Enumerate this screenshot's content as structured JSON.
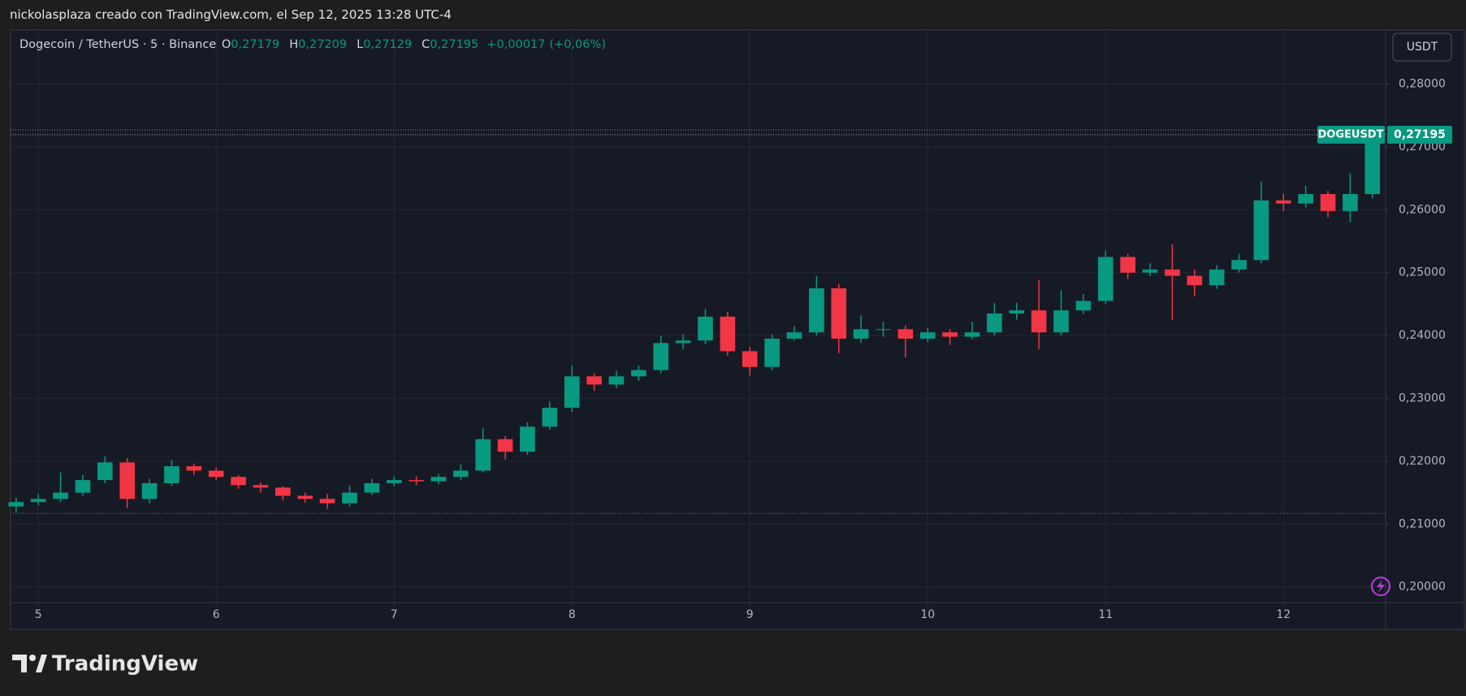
{
  "header": "nickolasplaza creado con TradingView.com, el Sep 12, 2025 13:28 UTC-4",
  "footer_brand": "TradingView",
  "chart_data": {
    "type": "candlestick",
    "title": "Dogecoin / TetherUS · 5 · Binance",
    "legend": {
      "keys": [
        "O",
        "H",
        "L",
        "C"
      ],
      "open": {
        "value": 0.27179,
        "label": "0,27179"
      },
      "high": {
        "value": 0.27209,
        "label": "0,27209"
      },
      "low": {
        "value": 0.27129,
        "label": "0,27129"
      },
      "close": {
        "value": 0.27195,
        "label": "0,27195"
      },
      "change": {
        "value": 0.00017,
        "label": "+0,00017"
      },
      "change_pct": {
        "value": 0.06,
        "label": "(+0,06%)"
      }
    },
    "currency": "USDT",
    "symbol": "DOGEUSDT",
    "last_price": {
      "value": 0.27195,
      "label": "0,27195"
    },
    "range_lines": [
      0.2727,
      0.2117
    ],
    "up_color": "#089981",
    "down_color": "#f23645",
    "x": [
      4.875,
      5.0,
      5.125,
      5.25,
      5.375,
      5.5,
      5.625,
      5.75,
      5.875,
      6.0,
      6.125,
      6.25,
      6.375,
      6.5,
      6.625,
      6.75,
      6.875,
      7.0,
      7.125,
      7.25,
      7.375,
      7.5,
      7.625,
      7.75,
      7.875,
      8.0,
      8.125,
      8.25,
      8.375,
      8.5,
      8.625,
      8.75,
      8.875,
      9.0,
      9.125,
      9.25,
      9.375,
      9.5,
      9.625,
      9.75,
      9.875,
      10.0,
      10.125,
      10.25,
      10.375,
      10.5,
      10.625,
      10.75,
      10.875,
      11.0,
      11.125,
      11.25,
      11.375,
      11.5,
      11.625,
      11.75,
      11.875,
      12.0,
      12.125,
      12.25,
      12.375,
      12.5
    ],
    "open": [
      0.2128,
      0.2135,
      0.214,
      0.215,
      0.217,
      0.2198,
      0.214,
      0.2165,
      0.2192,
      0.2185,
      0.2175,
      0.2162,
      0.2158,
      0.2145,
      0.214,
      0.2133,
      0.215,
      0.2165,
      0.217,
      0.2168,
      0.2175,
      0.2185,
      0.2235,
      0.2215,
      0.2255,
      0.2285,
      0.2335,
      0.2322,
      0.2335,
      0.2345,
      0.2388,
      0.2392,
      0.243,
      0.2375,
      0.235,
      0.2395,
      0.2405,
      0.2475,
      0.2395,
      0.241,
      0.241,
      0.2395,
      0.2405,
      0.2398,
      0.2405,
      0.2435,
      0.244,
      0.2405,
      0.244,
      0.2455,
      0.2525,
      0.25,
      0.2505,
      0.2495,
      0.248,
      0.2505,
      0.252,
      0.2615,
      0.261,
      0.2625,
      0.2598,
      0.2625
    ],
    "high": [
      0.2142,
      0.2148,
      0.2182,
      0.2178,
      0.2208,
      0.2205,
      0.2172,
      0.2202,
      0.2196,
      0.219,
      0.2178,
      0.2166,
      0.216,
      0.215,
      0.2148,
      0.2162,
      0.2172,
      0.2176,
      0.2176,
      0.218,
      0.2195,
      0.2252,
      0.224,
      0.2262,
      0.2295,
      0.2352,
      0.234,
      0.2344,
      0.2352,
      0.24,
      0.2402,
      0.2442,
      0.2438,
      0.2382,
      0.2402,
      0.2415,
      0.2495,
      0.2482,
      0.2432,
      0.2422,
      0.2416,
      0.2412,
      0.241,
      0.2422,
      0.2452,
      0.2452,
      0.2488,
      0.2472,
      0.2466,
      0.2535,
      0.253,
      0.2515,
      0.2545,
      0.2505,
      0.2512,
      0.253,
      0.2645,
      0.2625,
      0.2638,
      0.263,
      0.2658,
      0.27209
    ],
    "low": [
      0.2118,
      0.213,
      0.2135,
      0.2145,
      0.2165,
      0.2125,
      0.2133,
      0.216,
      0.2178,
      0.217,
      0.2156,
      0.215,
      0.2138,
      0.2134,
      0.2124,
      0.2128,
      0.2146,
      0.216,
      0.2162,
      0.2163,
      0.217,
      0.2182,
      0.2203,
      0.221,
      0.225,
      0.2278,
      0.2312,
      0.2316,
      0.2328,
      0.234,
      0.2378,
      0.2386,
      0.2368,
      0.2336,
      0.2345,
      0.2392,
      0.24,
      0.2372,
      0.2388,
      0.2398,
      0.2365,
      0.239,
      0.2385,
      0.2394,
      0.24,
      0.2425,
      0.2378,
      0.24,
      0.2434,
      0.245,
      0.249,
      0.2494,
      0.2425,
      0.2462,
      0.2474,
      0.25,
      0.2515,
      0.2598,
      0.2604,
      0.2588,
      0.258,
      0.2618
    ],
    "close": [
      0.2135,
      0.214,
      0.215,
      0.217,
      0.2198,
      0.214,
      0.2165,
      0.2192,
      0.2185,
      0.2175,
      0.2162,
      0.2158,
      0.2145,
      0.214,
      0.2133,
      0.215,
      0.2165,
      0.217,
      0.2168,
      0.2175,
      0.2185,
      0.2235,
      0.2215,
      0.2255,
      0.2285,
      0.2335,
      0.2322,
      0.2335,
      0.2345,
      0.2388,
      0.2392,
      0.243,
      0.2375,
      0.235,
      0.2395,
      0.2405,
      0.2475,
      0.2395,
      0.241,
      0.241,
      0.2395,
      0.2405,
      0.2398,
      0.2405,
      0.2435,
      0.244,
      0.2405,
      0.244,
      0.2455,
      0.2525,
      0.25,
      0.2505,
      0.2495,
      0.248,
      0.2505,
      0.252,
      0.2615,
      0.261,
      0.2625,
      0.2598,
      0.2625,
      0.27195
    ],
    "xlim": [
      4.844,
      12.574
    ],
    "xticks": [
      5,
      6,
      7,
      8,
      9,
      10,
      11,
      12
    ],
    "ylim": [
      0.1975,
      0.2886
    ],
    "yticks": [
      {
        "value": 0.2,
        "label": "0,20000"
      },
      {
        "value": 0.21,
        "label": "0,21000"
      },
      {
        "value": 0.22,
        "label": "0,22000"
      },
      {
        "value": 0.23,
        "label": "0,23000"
      },
      {
        "value": 0.24,
        "label": "0,24000"
      },
      {
        "value": 0.25,
        "label": "0,25000"
      },
      {
        "value": 0.26,
        "label": "0,26000"
      },
      {
        "value": 0.27,
        "label": "0,27000"
      },
      {
        "value": 0.28,
        "label": "0,28000"
      }
    ],
    "grid": true
  }
}
